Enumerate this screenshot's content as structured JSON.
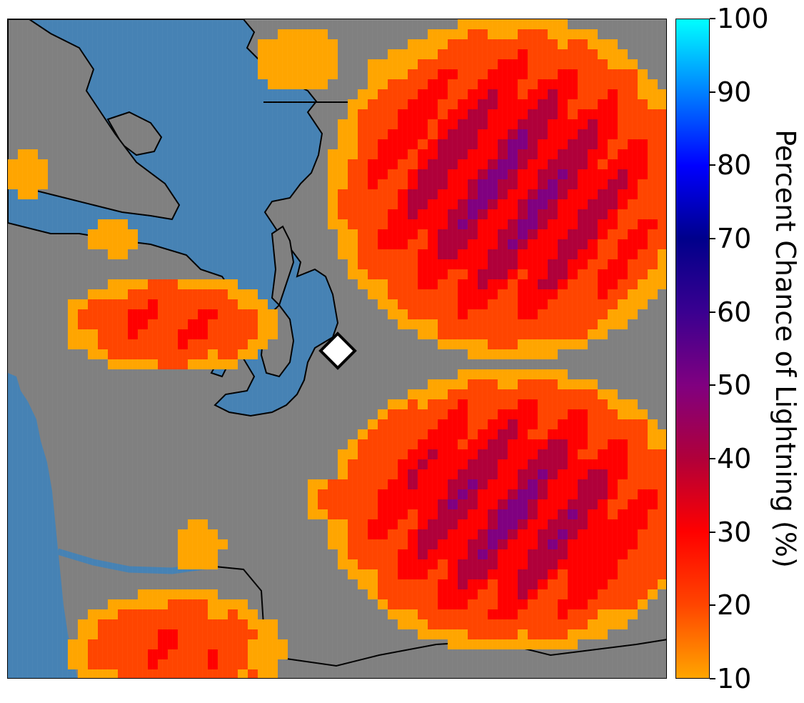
{
  "map": {
    "land_color": "#808080",
    "water_color": "#4682B4",
    "marker": {
      "shape": "diamond",
      "fill": "#ffffff",
      "stroke": "#000000"
    },
    "probability_cells": [
      {
        "p": 15,
        "x": 74,
        "y": 69
      },
      {
        "p": 22,
        "x": 78,
        "y": 67
      },
      {
        "p": 30,
        "x": 80,
        "y": 76
      },
      {
        "p": 45,
        "x": 73,
        "y": 81
      },
      {
        "p": 55,
        "x": 77,
        "y": 79
      },
      {
        "p": 30,
        "x": 86,
        "y": 78
      },
      {
        "p": 48,
        "x": 92,
        "y": 82
      },
      {
        "p": 40,
        "x": 95,
        "y": 88
      }
    ]
  },
  "colorbar": {
    "title": "Percent Chance of Lightning (%)",
    "ticks": [
      "100",
      "90",
      "80",
      "70",
      "60",
      "50",
      "40",
      "30",
      "20",
      "10"
    ],
    "min": 10,
    "max": 100,
    "colors": [
      "#FFA500",
      "#FF4500",
      "#FF0000",
      "#B0003A",
      "#800080",
      "#3A0090",
      "#00008B",
      "#0000FF",
      "#0080FF",
      "#00FFFF"
    ]
  }
}
